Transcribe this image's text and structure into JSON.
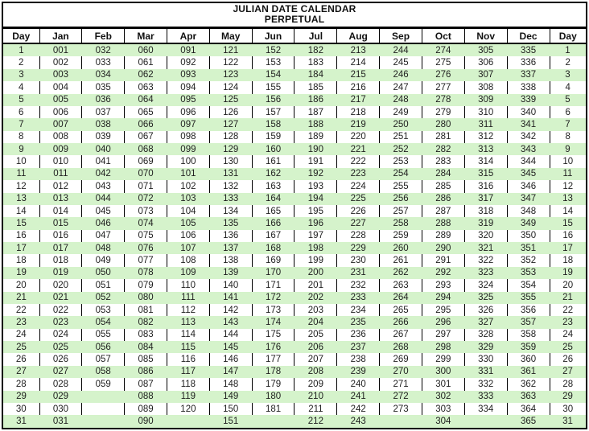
{
  "title": {
    "line1": "JULIAN DATE CALENDAR",
    "line2": "PERPETUAL"
  },
  "colors": {
    "row_alt_green": "#d5f3cb",
    "border": "#000000",
    "text": "#1f1f1f"
  },
  "table": {
    "day_header": "Day",
    "months": [
      "Jan",
      "Feb",
      "Mar",
      "Apr",
      "May",
      "Jun",
      "Jul",
      "Aug",
      "Sep",
      "Oct",
      "Nov",
      "Dec"
    ],
    "rows": [
      {
        "day": "1",
        "values": [
          "001",
          "032",
          "060",
          "091",
          "121",
          "152",
          "182",
          "213",
          "244",
          "274",
          "305",
          "335"
        ]
      },
      {
        "day": "2",
        "values": [
          "002",
          "033",
          "061",
          "092",
          "122",
          "153",
          "183",
          "214",
          "245",
          "275",
          "306",
          "336"
        ]
      },
      {
        "day": "3",
        "values": [
          "003",
          "034",
          "062",
          "093",
          "123",
          "154",
          "184",
          "215",
          "246",
          "276",
          "307",
          "337"
        ]
      },
      {
        "day": "4",
        "values": [
          "004",
          "035",
          "063",
          "094",
          "124",
          "155",
          "185",
          "216",
          "247",
          "277",
          "308",
          "338"
        ]
      },
      {
        "day": "5",
        "values": [
          "005",
          "036",
          "064",
          "095",
          "125",
          "156",
          "186",
          "217",
          "248",
          "278",
          "309",
          "339"
        ]
      },
      {
        "day": "6",
        "values": [
          "006",
          "037",
          "065",
          "096",
          "126",
          "157",
          "187",
          "218",
          "249",
          "279",
          "310",
          "340"
        ]
      },
      {
        "day": "7",
        "values": [
          "007",
          "038",
          "066",
          "097",
          "127",
          "158",
          "188",
          "219",
          "250",
          "280",
          "311",
          "341"
        ]
      },
      {
        "day": "8",
        "values": [
          "008",
          "039",
          "067",
          "098",
          "128",
          "159",
          "189",
          "220",
          "251",
          "281",
          "312",
          "342"
        ]
      },
      {
        "day": "9",
        "values": [
          "009",
          "040",
          "068",
          "099",
          "129",
          "160",
          "190",
          "221",
          "252",
          "282",
          "313",
          "343"
        ]
      },
      {
        "day": "10",
        "values": [
          "010",
          "041",
          "069",
          "100",
          "130",
          "161",
          "191",
          "222",
          "253",
          "283",
          "314",
          "344"
        ]
      },
      {
        "day": "11",
        "values": [
          "011",
          "042",
          "070",
          "101",
          "131",
          "162",
          "192",
          "223",
          "254",
          "284",
          "315",
          "345"
        ]
      },
      {
        "day": "12",
        "values": [
          "012",
          "043",
          "071",
          "102",
          "132",
          "163",
          "193",
          "224",
          "255",
          "285",
          "316",
          "346"
        ]
      },
      {
        "day": "13",
        "values": [
          "013",
          "044",
          "072",
          "103",
          "133",
          "164",
          "194",
          "225",
          "256",
          "286",
          "317",
          "347"
        ]
      },
      {
        "day": "14",
        "values": [
          "014",
          "045",
          "073",
          "104",
          "134",
          "165",
          "195",
          "226",
          "257",
          "287",
          "318",
          "348"
        ]
      },
      {
        "day": "15",
        "values": [
          "015",
          "046",
          "074",
          "105",
          "135",
          "166",
          "196",
          "227",
          "258",
          "288",
          "319",
          "349"
        ]
      },
      {
        "day": "16",
        "values": [
          "016",
          "047",
          "075",
          "106",
          "136",
          "167",
          "197",
          "228",
          "259",
          "289",
          "320",
          "350"
        ]
      },
      {
        "day": "17",
        "values": [
          "017",
          "048",
          "076",
          "107",
          "137",
          "168",
          "198",
          "229",
          "260",
          "290",
          "321",
          "351"
        ]
      },
      {
        "day": "18",
        "values": [
          "018",
          "049",
          "077",
          "108",
          "138",
          "169",
          "199",
          "230",
          "261",
          "291",
          "322",
          "352"
        ]
      },
      {
        "day": "19",
        "values": [
          "019",
          "050",
          "078",
          "109",
          "139",
          "170",
          "200",
          "231",
          "262",
          "292",
          "323",
          "353"
        ]
      },
      {
        "day": "20",
        "values": [
          "020",
          "051",
          "079",
          "110",
          "140",
          "171",
          "201",
          "232",
          "263",
          "293",
          "324",
          "354"
        ]
      },
      {
        "day": "21",
        "values": [
          "021",
          "052",
          "080",
          "111",
          "141",
          "172",
          "202",
          "233",
          "264",
          "294",
          "325",
          "355"
        ]
      },
      {
        "day": "22",
        "values": [
          "022",
          "053",
          "081",
          "112",
          "142",
          "173",
          "203",
          "234",
          "265",
          "295",
          "326",
          "356"
        ]
      },
      {
        "day": "23",
        "values": [
          "023",
          "054",
          "082",
          "113",
          "143",
          "174",
          "204",
          "235",
          "266",
          "296",
          "327",
          "357"
        ]
      },
      {
        "day": "24",
        "values": [
          "024",
          "055",
          "083",
          "114",
          "144",
          "175",
          "205",
          "236",
          "267",
          "297",
          "328",
          "358"
        ]
      },
      {
        "day": "25",
        "values": [
          "025",
          "056",
          "084",
          "115",
          "145",
          "176",
          "206",
          "237",
          "268",
          "298",
          "329",
          "359"
        ]
      },
      {
        "day": "26",
        "values": [
          "026",
          "057",
          "085",
          "116",
          "146",
          "177",
          "207",
          "238",
          "269",
          "299",
          "330",
          "360"
        ]
      },
      {
        "day": "27",
        "values": [
          "027",
          "058",
          "086",
          "117",
          "147",
          "178",
          "208",
          "239",
          "270",
          "300",
          "331",
          "361"
        ]
      },
      {
        "day": "28",
        "values": [
          "028",
          "059",
          "087",
          "118",
          "148",
          "179",
          "209",
          "240",
          "271",
          "301",
          "332",
          "362"
        ]
      },
      {
        "day": "29",
        "values": [
          "029",
          "",
          "088",
          "119",
          "149",
          "180",
          "210",
          "241",
          "272",
          "302",
          "333",
          "363"
        ]
      },
      {
        "day": "30",
        "values": [
          "030",
          "",
          "089",
          "120",
          "150",
          "181",
          "211",
          "242",
          "273",
          "303",
          "334",
          "364"
        ]
      },
      {
        "day": "31",
        "values": [
          "031",
          "",
          "090",
          "",
          "151",
          "",
          "212",
          "243",
          "",
          "304",
          "",
          "365"
        ]
      }
    ]
  }
}
